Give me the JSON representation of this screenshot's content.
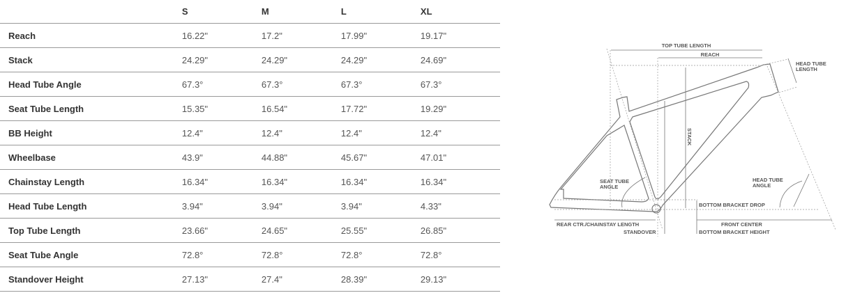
{
  "columns": [
    "",
    "S",
    "M",
    "L",
    "XL"
  ],
  "rows": [
    {
      "label": "Reach",
      "values": [
        "16.22\"",
        "17.2\"",
        "17.99\"",
        "19.17\""
      ]
    },
    {
      "label": "Stack",
      "values": [
        "24.29\"",
        "24.29\"",
        "24.29\"",
        "24.69\""
      ]
    },
    {
      "label": "Head Tube Angle",
      "values": [
        "67.3°",
        "67.3°",
        "67.3°",
        "67.3°"
      ]
    },
    {
      "label": "Seat Tube Length",
      "values": [
        "15.35\"",
        "16.54\"",
        "17.72\"",
        "19.29\""
      ]
    },
    {
      "label": "BB Height",
      "values": [
        "12.4\"",
        "12.4\"",
        "12.4\"",
        "12.4\""
      ]
    },
    {
      "label": "Wheelbase",
      "values": [
        "43.9\"",
        "44.88\"",
        "45.67\"",
        "47.01\""
      ]
    },
    {
      "label": "Chainstay Length",
      "values": [
        "16.34\"",
        "16.34\"",
        "16.34\"",
        "16.34\""
      ]
    },
    {
      "label": "Head Tube Length",
      "values": [
        "3.94\"",
        "3.94\"",
        "3.94\"",
        "4.33\""
      ]
    },
    {
      "label": "Top Tube Length",
      "values": [
        "23.66\"",
        "24.65\"",
        "25.55\"",
        "26.85\""
      ]
    },
    {
      "label": "Seat Tube Angle",
      "values": [
        "72.8°",
        "72.8°",
        "72.8°",
        "72.8°"
      ]
    },
    {
      "label": "Standover Height",
      "values": [
        "27.13\"",
        "27.4\"",
        "28.39\"",
        "29.13\""
      ]
    }
  ],
  "diagram": {
    "top_tube_length": "TOP TUBE LENGTH",
    "reach": "REACH",
    "head_tube_length_1": "HEAD TUBE",
    "head_tube_length_2": "LENGTH",
    "stack": "STACK",
    "seat_tube_angle_1": "SEAT TUBE",
    "seat_tube_angle_2": "ANGLE",
    "head_tube_angle_1": "HEAD TUBE",
    "head_tube_angle_2": "ANGLE",
    "bottom_bracket_drop": "BOTTOM BRACKET DROP",
    "rear_center": "REAR CTR./CHAINSTAY LENGTH",
    "front_center": "FRONT CENTER",
    "standover": "STANDOVER",
    "bottom_bracket_height": "BOTTOM BRACKET HEIGHT"
  }
}
